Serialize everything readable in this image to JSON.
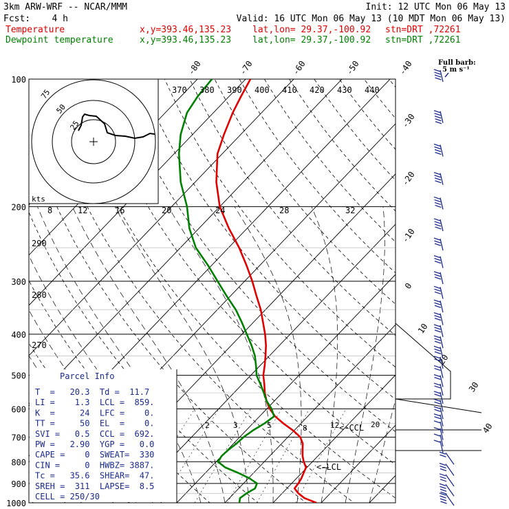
{
  "header": {
    "model": "3km ARW-WRF -- NCAR/MMM",
    "init": "Init: 12 UTC Mon 06 May 13",
    "fcst": "Fcst:    4 h",
    "valid": "Valid: 16 UTC Mon 06 May 13 (10 MDT Mon 06 May 13)",
    "temp_label": "Temperature",
    "dew_label": "Dewpoint temperature",
    "xy": "x,y=393.46,135.23",
    "latlon": "lat,lon= 29.37,-100.92",
    "stn": "stn=DRT ,72261"
  },
  "barb_key": {
    "line1": "Full barb:",
    "line2": "5 m s⁻¹"
  },
  "hodograph": {
    "unit": "kts",
    "ring_labels": [
      "75",
      "50",
      "25"
    ],
    "x_tick_labels": [
      "8",
      "12",
      "16",
      "20",
      "24",
      "28",
      "32"
    ]
  },
  "parcel_info": {
    "title": "Parcel Info",
    "rows": [
      "T  =   20.3  Td =  11.7",
      "LI =    1.3  LCL =  859.",
      "K  =     24  LFC =    0.",
      "TT =     50  EL  =    0.",
      "SVI =   0.5  CCL =  692.",
      "PW =   2.90  YGP =   0.0",
      "CAPE =    0  SWEAT=  330",
      "CIN =     0  HWBZ= 3887.",
      "Tc =   35.6  SHEAR=  47.",
      "SREH =  311  LAPSE=  8.5",
      "CELL = 250/30"
    ]
  },
  "theta_labels": [
    "370",
    "380",
    "390",
    "400",
    "410",
    "420",
    "430",
    "440"
  ],
  "theta_left_labels": [
    "290",
    "280",
    "270"
  ],
  "temp_axis_labels": [
    "-80",
    "-70",
    "-60",
    "-50",
    "-40",
    "-30",
    "-20",
    "-10",
    "0",
    "10",
    "20",
    "30",
    "40"
  ],
  "mixing_ratio_labels": [
    "2",
    "3",
    "5",
    "8",
    "12",
    "20"
  ],
  "annotations": {
    "ccl": "<-CCL",
    "lcl": "<-LCL"
  },
  "colors": {
    "temperature": "#e00000",
    "dewpoint": "#008000",
    "barbs": "#1a2a8a",
    "parcel_text": "#1a2a8a"
  },
  "chart_data": {
    "type": "line",
    "title": "",
    "y_axis": {
      "label": "",
      "scale": "log",
      "ticks": [
        100,
        200,
        300,
        400,
        500,
        600,
        700,
        800,
        900,
        1000
      ],
      "range": [
        1000,
        100
      ]
    },
    "series": [
      {
        "name": "Temperature",
        "units": "degC",
        "points": [
          [
            1000,
            29.0
          ],
          [
            975,
            25.6
          ],
          [
            950,
            23.4
          ],
          [
            925,
            21.6
          ],
          [
            900,
            21.4
          ],
          [
            875,
            21.0
          ],
          [
            850,
            20.4
          ],
          [
            825,
            19.8
          ],
          [
            800,
            18.2
          ],
          [
            775,
            16.8
          ],
          [
            750,
            15.6
          ],
          [
            725,
            14.4
          ],
          [
            700,
            12.6
          ],
          [
            675,
            9.8
          ],
          [
            650,
            6.4
          ],
          [
            625,
            3.2
          ],
          [
            600,
            0.6
          ],
          [
            575,
            -1.6
          ],
          [
            550,
            -3.6
          ],
          [
            525,
            -5.4
          ],
          [
            500,
            -7.4
          ],
          [
            475,
            -9.0
          ],
          [
            450,
            -10.8
          ],
          [
            425,
            -12.8
          ],
          [
            400,
            -15.2
          ],
          [
            375,
            -18.0
          ],
          [
            350,
            -21.0
          ],
          [
            325,
            -24.6
          ],
          [
            300,
            -28.4
          ],
          [
            275,
            -32.8
          ],
          [
            250,
            -37.8
          ],
          [
            225,
            -43.8
          ],
          [
            200,
            -50.0
          ],
          [
            175,
            -55.6
          ],
          [
            150,
            -61.0
          ],
          [
            135,
            -63.5
          ],
          [
            120,
            -66.0
          ],
          [
            110,
            -67.5
          ],
          [
            100,
            -69.0
          ]
        ]
      },
      {
        "name": "Dewpoint temperature",
        "units": "degC",
        "points": [
          [
            1000,
            13.0
          ],
          [
            975,
            12.2
          ],
          [
            950,
            12.6
          ],
          [
            925,
            13.4
          ],
          [
            900,
            12.8
          ],
          [
            875,
            10.2
          ],
          [
            850,
            6.8
          ],
          [
            825,
            3.0
          ],
          [
            800,
            0.4
          ],
          [
            775,
            0.0
          ],
          [
            750,
            0.2
          ],
          [
            725,
            0.6
          ],
          [
            700,
            0.8
          ],
          [
            675,
            1.4
          ],
          [
            650,
            2.4
          ],
          [
            625,
            3.0
          ],
          [
            600,
            1.0
          ],
          [
            575,
            -1.6
          ],
          [
            550,
            -3.8
          ],
          [
            525,
            -6.2
          ],
          [
            500,
            -8.8
          ],
          [
            475,
            -10.8
          ],
          [
            450,
            -13.0
          ],
          [
            425,
            -15.8
          ],
          [
            400,
            -19.0
          ],
          [
            375,
            -22.4
          ],
          [
            350,
            -26.2
          ],
          [
            325,
            -30.8
          ],
          [
            300,
            -35.6
          ],
          [
            275,
            -40.8
          ],
          [
            250,
            -46.8
          ],
          [
            225,
            -52.0
          ],
          [
            200,
            -56.8
          ],
          [
            175,
            -63.0
          ],
          [
            150,
            -69.0
          ],
          [
            135,
            -72.5
          ],
          [
            120,
            -75.5
          ],
          [
            110,
            -76.5
          ],
          [
            100,
            -77.0
          ]
        ]
      }
    ],
    "wind_barbs": [
      {
        "p": 100,
        "barbs": 4
      },
      {
        "p": 125,
        "barbs": 5
      },
      {
        "p": 150,
        "barbs": 4
      },
      {
        "p": 175,
        "barbs": 4
      },
      {
        "p": 200,
        "barbs": 4
      },
      {
        "p": 225,
        "barbs": 4
      },
      {
        "p": 250,
        "barbs": 3
      },
      {
        "p": 275,
        "barbs": 3
      },
      {
        "p": 300,
        "barbs": 3
      },
      {
        "p": 325,
        "barbs": 3
      },
      {
        "p": 350,
        "barbs": 3
      },
      {
        "p": 375,
        "barbs": 3
      },
      {
        "p": 400,
        "barbs": 3
      },
      {
        "p": 425,
        "barbs": 3
      },
      {
        "p": 450,
        "barbs": 3
      },
      {
        "p": 475,
        "barbs": 2
      },
      {
        "p": 500,
        "barbs": 2
      },
      {
        "p": 525,
        "barbs": 2
      },
      {
        "p": 550,
        "barbs": 2
      },
      {
        "p": 575,
        "barbs": 2
      },
      {
        "p": 600,
        "barbs": 2
      },
      {
        "p": 625,
        "barbs": 2
      },
      {
        "p": 650,
        "barbs": 2
      },
      {
        "p": 675,
        "barbs": 1
      },
      {
        "p": 700,
        "barbs": 1
      },
      {
        "p": 725,
        "barbs": 1
      },
      {
        "p": 750,
        "barbs": 1
      },
      {
        "p": 800,
        "barbs": 2
      },
      {
        "p": 850,
        "barbs": 3
      },
      {
        "p": 900,
        "barbs": 3
      },
      {
        "p": 950,
        "barbs": 4
      },
      {
        "p": 1000,
        "barbs": 4
      }
    ]
  }
}
